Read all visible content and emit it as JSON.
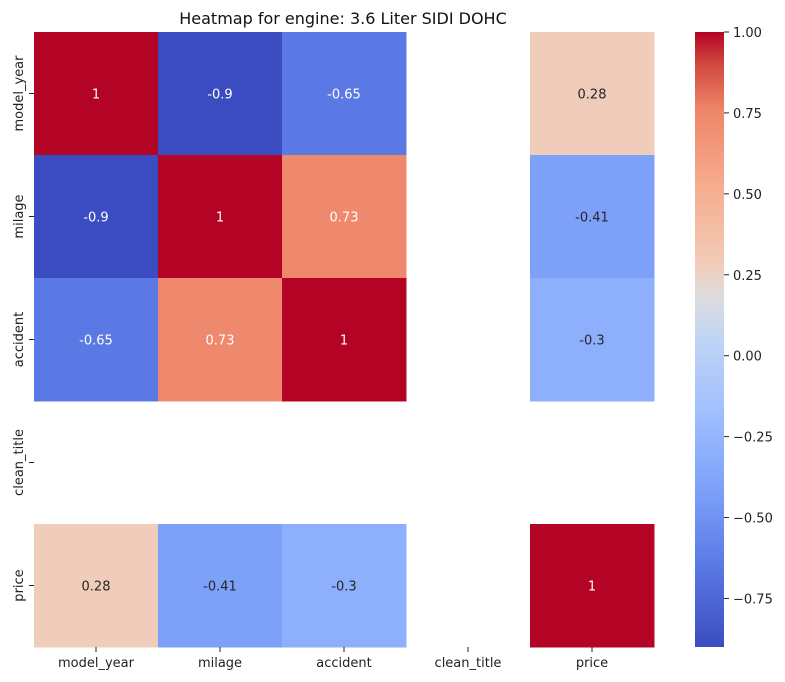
{
  "chart_data": {
    "type": "heatmap",
    "title": "Heatmap for engine: 3.6 Liter SIDI DOHC",
    "xlabel": "",
    "ylabel": "",
    "x_categories": [
      "model_year",
      "milage",
      "accident",
      "clean_title",
      "price"
    ],
    "y_categories": [
      "model_year",
      "milage",
      "accident",
      "clean_title",
      "price"
    ],
    "values": [
      [
        1,
        -0.9,
        -0.65,
        null,
        0.28
      ],
      [
        -0.9,
        1,
        0.73,
        null,
        -0.41
      ],
      [
        -0.65,
        0.73,
        1,
        null,
        -0.3
      ],
      [
        null,
        null,
        null,
        null,
        null
      ],
      [
        0.28,
        -0.41,
        -0.3,
        null,
        1
      ]
    ],
    "annotations": [
      [
        "1",
        "-0.9",
        "-0.65",
        "",
        "0.28"
      ],
      [
        "-0.9",
        "1",
        "0.73",
        "",
        "-0.41"
      ],
      [
        "-0.65",
        "0.73",
        "1",
        "",
        "-0.3"
      ],
      [
        "",
        "",
        "",
        "",
        ""
      ],
      [
        "0.28",
        "-0.41",
        "-0.3",
        "",
        "1"
      ]
    ],
    "colormap": "coolwarm",
    "vmin": -0.9,
    "vmax": 1,
    "colorbar_ticks": [
      "1.00",
      "0.75",
      "0.50",
      "0.25",
      "0.00",
      "−0.25",
      "−0.50",
      "−0.75"
    ],
    "colorbar_tick_values": [
      1,
      0.75,
      0.5,
      0.25,
      0,
      -0.25,
      -0.5,
      -0.75
    ],
    "grid": false,
    "legend": "colorbar-right"
  }
}
